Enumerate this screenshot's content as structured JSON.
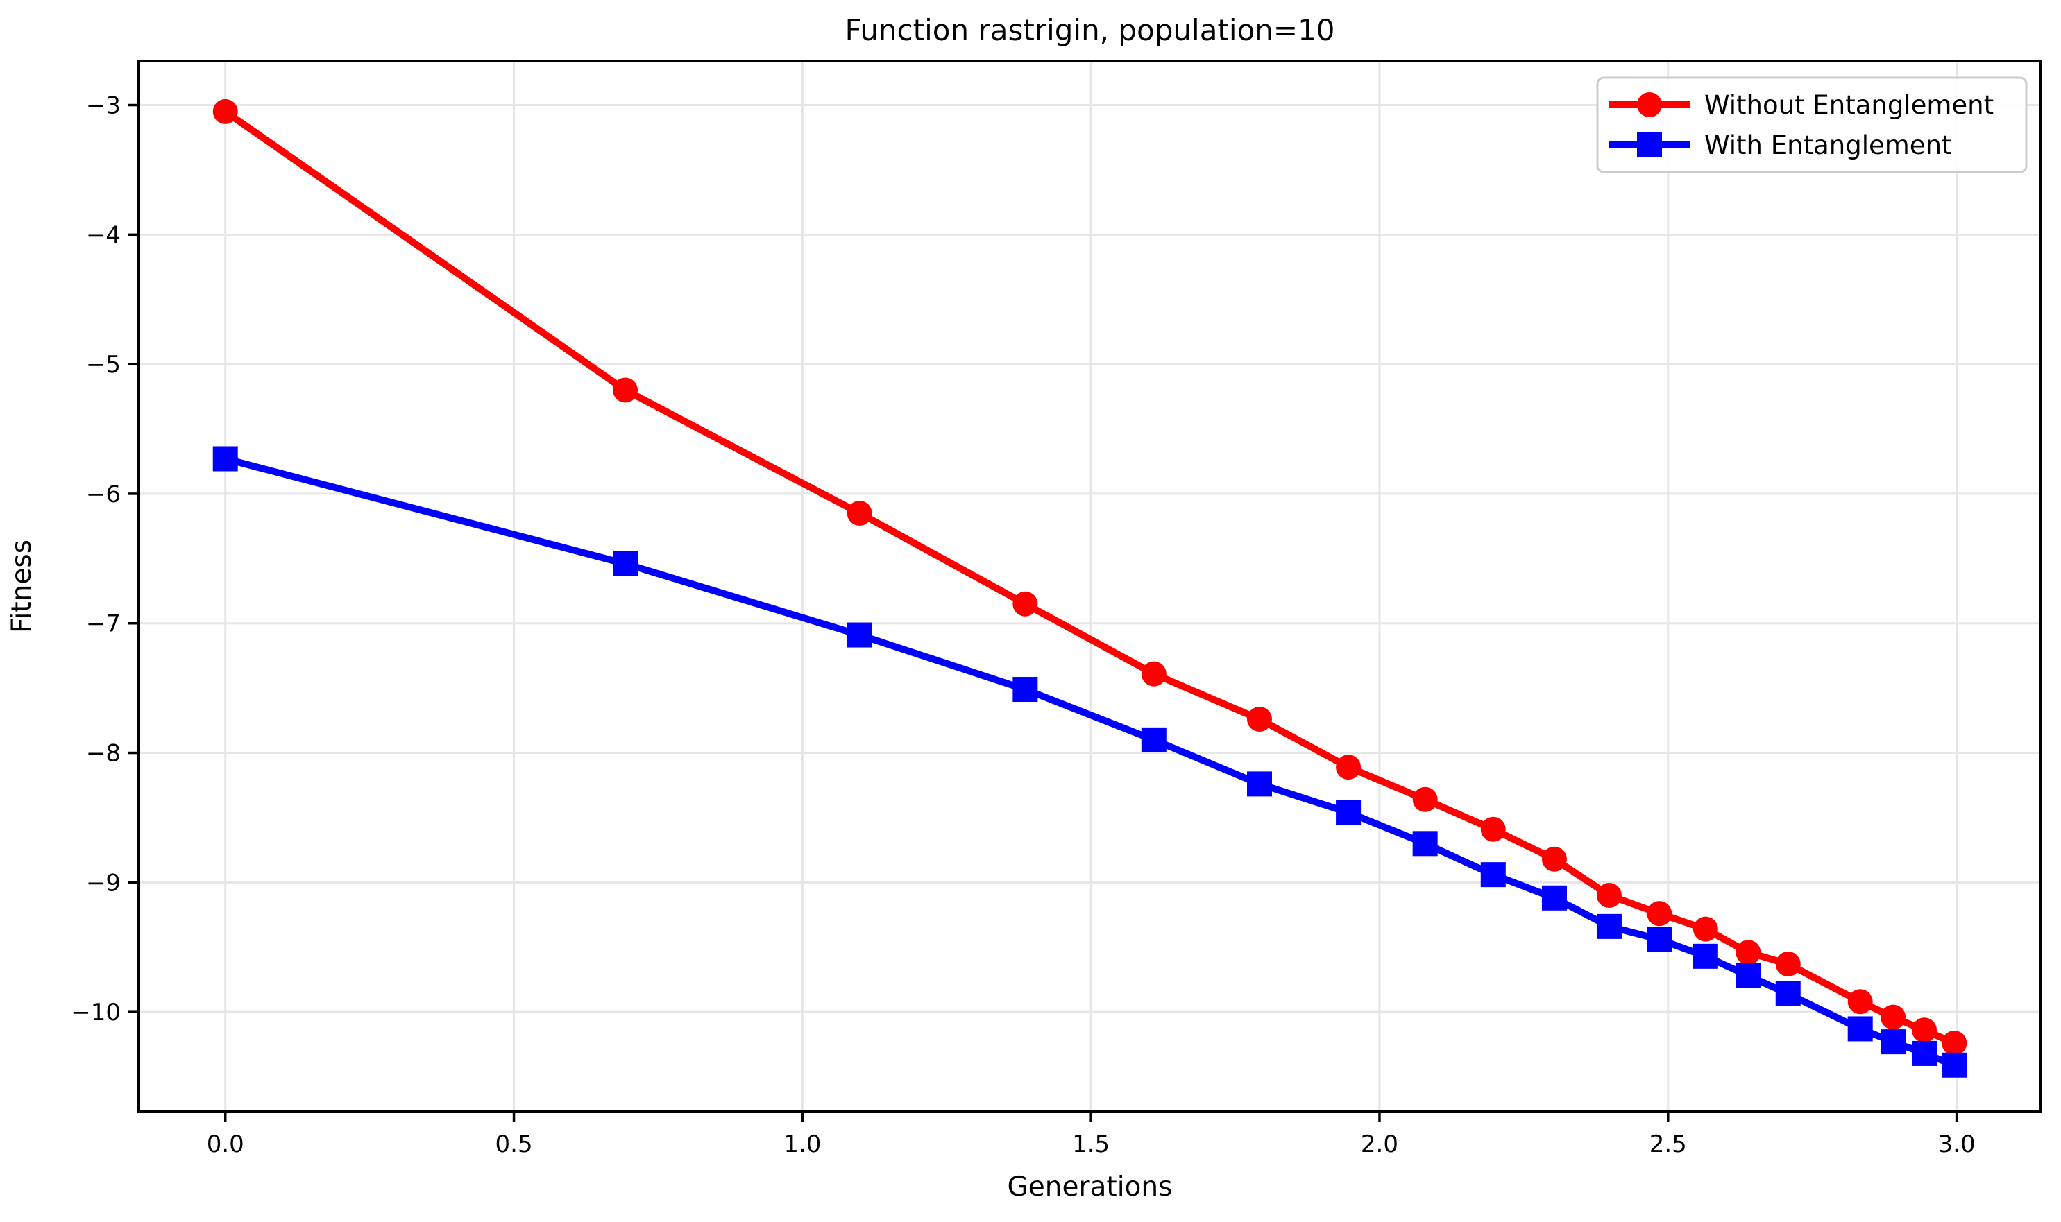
{
  "chart_data": {
    "type": "line",
    "title": "Function rastrigin, population=10",
    "xlabel": "Generations",
    "ylabel": "Fitness",
    "xlim": [
      -0.15,
      3.146
    ],
    "ylim": [
      -10.77,
      -2.66
    ],
    "grid": true,
    "legend_position": "upper right",
    "xticks": [
      0.0,
      0.5,
      1.0,
      1.5,
      2.0,
      2.5,
      3.0
    ],
    "xtick_labels": [
      "0.0",
      "0.5",
      "1.0",
      "1.5",
      "2.0",
      "2.5",
      "3.0"
    ],
    "yticks": [
      -3,
      -4,
      -5,
      -6,
      -7,
      -8,
      -9,
      -10
    ],
    "ytick_labels": [
      "−3",
      "−4",
      "−5",
      "−6",
      "−7",
      "−8",
      "−9",
      "−10"
    ],
    "x": [
      0.0,
      0.693,
      1.099,
      1.386,
      1.609,
      1.792,
      1.946,
      2.079,
      2.197,
      2.303,
      2.398,
      2.485,
      2.565,
      2.639,
      2.708,
      2.833,
      2.89,
      2.944,
      2.996
    ],
    "series": [
      {
        "name": "Without Entanglement",
        "color": "#ff0000",
        "marker": "circle",
        "values": [
          -3.05,
          -5.2,
          -6.15,
          -6.85,
          -7.39,
          -7.74,
          -8.11,
          -8.36,
          -8.59,
          -8.82,
          -9.1,
          -9.24,
          -9.36,
          -9.54,
          -9.63,
          -9.92,
          -10.04,
          -10.14,
          -10.24
        ]
      },
      {
        "name": "With Entanglement",
        "color": "#0000ff",
        "marker": "square",
        "values": [
          -5.73,
          -6.54,
          -7.09,
          -7.51,
          -7.9,
          -8.24,
          -8.46,
          -8.7,
          -8.94,
          -9.12,
          -9.34,
          -9.44,
          -9.57,
          -9.72,
          -9.86,
          -10.13,
          -10.23,
          -10.32,
          -10.41
        ]
      }
    ],
    "grid_color": "#e6e6e6",
    "spine_color": "#000000"
  }
}
